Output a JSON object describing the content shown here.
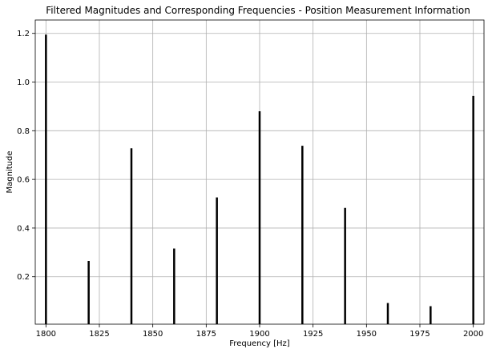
{
  "chart_data": {
    "type": "bar",
    "title": "Filtered Magnitudes and Corresponding Frequencies - Position Measurement Information",
    "xlabel": "Frequency [Hz]",
    "ylabel": "Magnitude",
    "x": [
      1800,
      1820,
      1840,
      1860,
      1880,
      1900,
      1920,
      1940,
      1960,
      1980,
      2000
    ],
    "values": [
      1.195,
      0.265,
      0.728,
      0.316,
      0.526,
      0.88,
      0.738,
      0.483,
      0.092,
      0.079,
      0.943
    ],
    "xlim": [
      1795,
      2005
    ],
    "ylim": [
      0.005,
      1.255
    ],
    "xticks": [
      1800,
      1825,
      1850,
      1875,
      1900,
      1925,
      1950,
      1975,
      2000
    ],
    "xtick_labels": [
      "1800",
      "1825",
      "1850",
      "1875",
      "1900",
      "1925",
      "1950",
      "1975",
      "2000"
    ],
    "yticks": [
      0.2,
      0.4,
      0.6,
      0.8,
      1.0,
      1.2
    ],
    "ytick_labels": [
      "0.2",
      "0.4",
      "0.6",
      "0.8",
      "1.0",
      "1.2"
    ],
    "grid": true,
    "bar_color": "#000000"
  }
}
